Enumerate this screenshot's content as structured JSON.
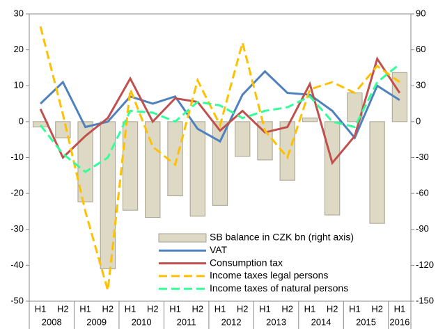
{
  "chart_data": {
    "type": "bar-line",
    "categories": [
      "H1",
      "H2",
      "H1",
      "H2",
      "H1",
      "H2",
      "H1",
      "H2",
      "H1",
      "H2",
      "H1",
      "H2",
      "H1",
      "H2",
      "H1",
      "H2",
      "H1"
    ],
    "years": [
      "2008",
      "2009",
      "2010",
      "2011",
      "2012",
      "2013",
      "2014",
      "2015",
      "2016"
    ],
    "ylim": [
      -50,
      30
    ],
    "yticks": [
      -50,
      -40,
      -30,
      -20,
      -10,
      0,
      10,
      20,
      30
    ],
    "y2lim": [
      -150,
      90
    ],
    "y2ticks": [
      -150,
      -120,
      -90,
      -60,
      -30,
      0,
      30,
      60,
      90
    ],
    "series": [
      {
        "name": "SB balance in CZK bn (right axis)",
        "kind": "bar",
        "axis": "y2",
        "color": "#ddd9c4",
        "values": [
          -4.5,
          -13.5,
          -67,
          -123,
          -74,
          -80,
          -62,
          -79,
          -70,
          -29,
          -32,
          -49,
          3,
          -78,
          24,
          -85,
          41
        ]
      },
      {
        "name": "VAT",
        "kind": "line",
        "color": "#4f81bd",
        "values": [
          5,
          11,
          -1.5,
          0,
          7,
          5,
          7,
          -2,
          -5.5,
          7.5,
          14,
          8,
          7.5,
          3,
          -4.5,
          10,
          6
        ]
      },
      {
        "name": "Consumption tax",
        "kind": "line",
        "color": "#c0504d",
        "values": [
          3.5,
          -10,
          -4,
          1,
          12,
          0,
          6.5,
          5.5,
          -2.5,
          3,
          -3,
          -1.5,
          10.5,
          -11.5,
          -4,
          17.5,
          8
        ]
      },
      {
        "name": "Income taxes legal persons",
        "kind": "dash",
        "color": "#ffc000",
        "values": [
          26.5,
          2,
          -25,
          -47,
          9,
          -7,
          -12,
          11.5,
          -1,
          22,
          -2.5,
          -10,
          9,
          11,
          8,
          15.5,
          11
        ]
      },
      {
        "name": "Income taxes of natural persons",
        "kind": "dash",
        "color": "#33ff99",
        "values": [
          -1,
          -9,
          -14,
          -10,
          3,
          2.5,
          0,
          5.5,
          4.5,
          1,
          3,
          4,
          7,
          0,
          -1.5,
          11,
          16
        ]
      }
    ]
  }
}
